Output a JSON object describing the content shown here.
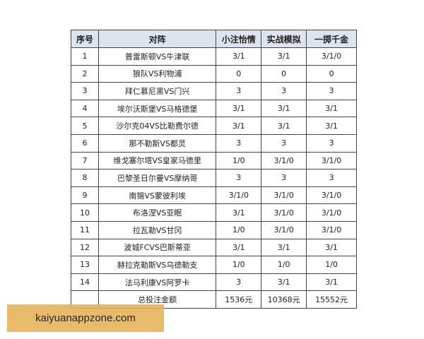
{
  "table": {
    "headers": [
      "序号",
      "对阵",
      "小注怡情",
      "实战模拟",
      "一掷千金"
    ],
    "rows": [
      [
        "1",
        "普雷斯顿VS牛津联",
        "3/1",
        "3/1",
        "3/1/0"
      ],
      [
        "2",
        "狼队VS利物浦",
        "0",
        "0",
        "0"
      ],
      [
        "3",
        "拜仁慕尼黑VS门兴",
        "3",
        "3",
        "3"
      ],
      [
        "4",
        "埃尔沃斯堡VS马格德堡",
        "3/1",
        "3/1",
        "3/1"
      ],
      [
        "5",
        "沙尔克04VS比勒费尔德",
        "3/1",
        "3/1",
        "3/1"
      ],
      [
        "6",
        "那不勒斯VS都灵",
        "3",
        "3",
        "3"
      ],
      [
        "7",
        "维戈塞尔塔VS皇家马德里",
        "1/0",
        "3/1/0",
        "3/1/0"
      ],
      [
        "8",
        "巴黎圣日尔曼VS摩纳哥",
        "3",
        "3",
        "3"
      ],
      [
        "9",
        "南锡VS蒙彼利埃",
        "3/1/0",
        "3/1/0",
        "3/1/0"
      ],
      [
        "10",
        "布洛涅VS亚眠",
        "3/1",
        "3/1/0",
        "3/1/0"
      ],
      [
        "11",
        "拉瓦勒VS甘冈",
        "1/0",
        "3/1/0",
        "3/1/0"
      ],
      [
        "12",
        "波城FCVS巴斯蒂亚",
        "3/1",
        "3/1",
        "3/1"
      ],
      [
        "13",
        "赫拉克勒斯VS乌德勒支",
        "1/0",
        "1/0",
        "1/0"
      ],
      [
        "14",
        "法马利康VS阿罗卡",
        "3",
        "3/1",
        "3/1"
      ]
    ],
    "total": [
      "",
      "总投注金额",
      "1536元",
      "10368元",
      "15552元"
    ]
  },
  "watermark": "kaiyuanappzone.com"
}
